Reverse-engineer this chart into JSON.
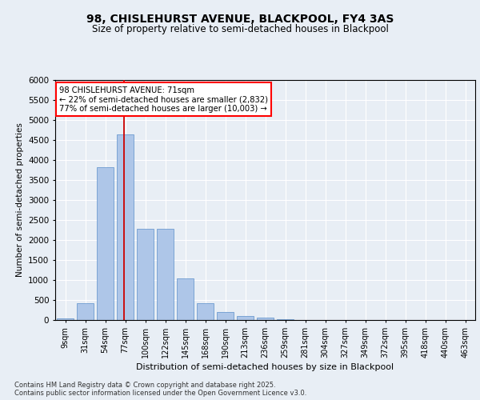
{
  "title1": "98, CHISLEHURST AVENUE, BLACKPOOL, FY4 3AS",
  "title2": "Size of property relative to semi-detached houses in Blackpool",
  "xlabel": "Distribution of semi-detached houses by size in Blackpool",
  "ylabel": "Number of semi-detached properties",
  "categories": [
    "9sqm",
    "31sqm",
    "54sqm",
    "77sqm",
    "100sqm",
    "122sqm",
    "145sqm",
    "168sqm",
    "190sqm",
    "213sqm",
    "236sqm",
    "259sqm",
    "281sqm",
    "304sqm",
    "327sqm",
    "349sqm",
    "372sqm",
    "395sqm",
    "418sqm",
    "440sqm",
    "463sqm"
  ],
  "values": [
    50,
    420,
    3820,
    4640,
    2280,
    2280,
    1050,
    420,
    200,
    100,
    55,
    30,
    10,
    5,
    2,
    2,
    1,
    1,
    1,
    1,
    1
  ],
  "bar_color": "#aec6e8",
  "bar_edge_color": "#5b8fc9",
  "vline_color": "#cc0000",
  "vline_x_index": 3,
  "annotation_title": "98 CHISLEHURST AVENUE: 71sqm",
  "annotation_line1": "← 22% of semi-detached houses are smaller (2,832)",
  "annotation_line2": "77% of semi-detached houses are larger (10,003) →",
  "ylim": [
    0,
    6000
  ],
  "yticks": [
    0,
    500,
    1000,
    1500,
    2000,
    2500,
    3000,
    3500,
    4000,
    4500,
    5000,
    5500,
    6000
  ],
  "footnote1": "Contains HM Land Registry data © Crown copyright and database right 2025.",
  "footnote2": "Contains public sector information licensed under the Open Government Licence v3.0.",
  "bg_color": "#e8eef5",
  "plot_bg_color": "#e8eef5"
}
